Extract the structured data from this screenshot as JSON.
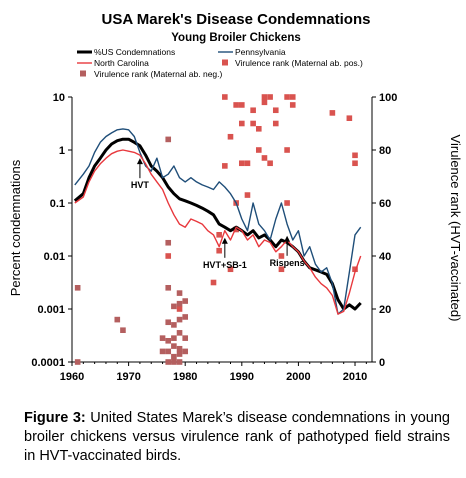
{
  "chart_data": {
    "type": "line",
    "title": "USA Marek's Disease Condemnations",
    "subtitle": "Young Broiler Chickens",
    "ylabel": "Percent condemnations",
    "y2label": "Virulence rank (HVT-vaccinated)",
    "xlim": [
      1960,
      2013
    ],
    "ylim": [
      0.0001,
      10
    ],
    "yscale": "log",
    "y2lim": [
      0,
      100
    ],
    "x_ticks": [
      "1960",
      "1970",
      "1980",
      "1990",
      "2000",
      "2010"
    ],
    "x_tick_values": [
      1960,
      1970,
      1980,
      1990,
      2000,
      2010
    ],
    "y_ticks": [
      "10",
      "1",
      "0.1",
      "0.01",
      "0.001",
      "0.0001"
    ],
    "y_tick_values": [
      10,
      1,
      0.1,
      0.01,
      0.001,
      0.0001
    ],
    "y2_ticks": [
      "100",
      "80",
      "60",
      "40",
      "20",
      "0"
    ],
    "y2_tick_values": [
      100,
      80,
      60,
      40,
      20,
      0
    ],
    "legend_position": "top",
    "series": [
      {
        "name": "%US Condemnations",
        "color": "#000000",
        "style": "thick",
        "x": [
          1960.5,
          1962,
          1963,
          1964,
          1965,
          1966,
          1967,
          1968,
          1969,
          1970,
          1971,
          1972,
          1973,
          1974,
          1975,
          1976,
          1977,
          1978,
          1979,
          1980,
          1981,
          1982,
          1983,
          1984,
          1985,
          1986,
          1987,
          1988,
          1989,
          1990,
          1991,
          1992,
          1993,
          1994,
          1995,
          1996,
          1997,
          1998,
          1999,
          2000,
          2001,
          2002,
          2003,
          2004,
          2005,
          2006,
          2007,
          2008,
          2009,
          2010,
          2011
        ],
        "y": [
          0.11,
          0.15,
          0.3,
          0.5,
          0.7,
          1.0,
          1.3,
          1.5,
          1.6,
          1.6,
          1.4,
          1.2,
          0.8,
          0.5,
          0.4,
          0.3,
          0.2,
          0.15,
          0.12,
          0.11,
          0.1,
          0.09,
          0.08,
          0.07,
          0.06,
          0.04,
          0.035,
          0.03,
          0.035,
          0.03,
          0.025,
          0.03,
          0.022,
          0.025,
          0.02,
          0.015,
          0.02,
          0.018,
          0.015,
          0.012,
          0.008,
          0.006,
          0.0055,
          0.005,
          0.0045,
          0.003,
          0.0015,
          0.001,
          0.0012,
          0.001,
          0.0013
        ]
      },
      {
        "name": "Pennsylvania",
        "color": "#1f4e79",
        "style": "thin",
        "x": [
          1960.5,
          1962,
          1963,
          1964,
          1965,
          1966,
          1967,
          1968,
          1969,
          1970,
          1971,
          1972,
          1973,
          1974,
          1975,
          1976,
          1977,
          1978,
          1979,
          1980,
          1981,
          1982,
          1983,
          1984,
          1985,
          1986,
          1987,
          1988,
          1989,
          1990,
          1991,
          1992,
          1993,
          1994,
          1995,
          1996,
          1997,
          1998,
          1999,
          2000,
          2001,
          2002,
          2003,
          2004,
          2005,
          2006,
          2007,
          2008,
          2009,
          2010,
          2011
        ],
        "y": [
          0.22,
          0.35,
          0.5,
          0.9,
          1.4,
          1.8,
          2.1,
          2.4,
          2.5,
          2.4,
          1.8,
          0.9,
          0.5,
          0.4,
          0.7,
          0.3,
          0.35,
          0.5,
          0.3,
          0.25,
          0.3,
          0.25,
          0.22,
          0.2,
          0.18,
          0.25,
          0.2,
          0.15,
          0.1,
          0.05,
          0.03,
          0.1,
          0.04,
          0.03,
          0.02,
          0.05,
          0.1,
          0.04,
          0.02,
          0.03,
          0.01,
          0.015,
          0.007,
          0.005,
          0.006,
          0.003,
          0.0008,
          0.001,
          0.005,
          0.025,
          0.035
        ]
      },
      {
        "name": "North Carolina",
        "color": "#e8383d",
        "style": "thin",
        "x": [
          1960.5,
          1962,
          1963,
          1964,
          1965,
          1966,
          1967,
          1968,
          1969,
          1970,
          1971,
          1972,
          1973,
          1974,
          1975,
          1976,
          1977,
          1978,
          1979,
          1980,
          1981,
          1982,
          1983,
          1984,
          1985,
          1986,
          1987,
          1988,
          1989,
          1990,
          1991,
          1992,
          1993,
          1994,
          1995,
          1996,
          1997,
          1998,
          1999,
          2000,
          2001,
          2002,
          2003,
          2004,
          2005,
          2006,
          2007,
          2008,
          2009,
          2010,
          2011
        ],
        "y": [
          0.1,
          0.13,
          0.25,
          0.4,
          0.55,
          0.7,
          0.85,
          0.95,
          1.0,
          0.95,
          0.9,
          0.8,
          0.55,
          0.35,
          0.25,
          0.18,
          0.1,
          0.06,
          0.04,
          0.035,
          0.05,
          0.045,
          0.04,
          0.03,
          0.025,
          0.015,
          0.03,
          0.02,
          0.035,
          0.03,
          0.02,
          0.025,
          0.015,
          0.02,
          0.018,
          0.012,
          0.015,
          0.02,
          0.015,
          0.012,
          0.008,
          0.006,
          0.004,
          0.003,
          0.0025,
          0.0018,
          0.0008,
          0.0009,
          0.002,
          0.005,
          0.01
        ]
      },
      {
        "name": "Virulence rank (Maternal ab. pos.)",
        "color": "#d9534f",
        "marker": "square",
        "axis": "right",
        "x": [
          1977,
          1979,
          1985,
          1986,
          1986,
          1987,
          1987,
          1988,
          1988,
          1989,
          1989,
          1989,
          1990,
          1990,
          1990,
          1991,
          1991,
          1992,
          1992,
          1993,
          1993,
          1994,
          1994,
          1994,
          1995,
          1995,
          1996,
          1996,
          1997,
          1997,
          1998,
          1998,
          1998,
          1999,
          1999,
          2006,
          2009,
          2010,
          2010,
          2010
        ],
        "y": [
          40,
          20,
          30,
          48,
          42,
          100,
          74,
          35,
          85,
          60,
          50,
          97,
          97,
          90,
          75,
          75,
          63,
          95,
          90,
          88,
          80,
          100,
          98,
          77,
          100,
          75,
          95,
          90,
          40,
          35,
          100,
          80,
          60,
          100,
          97,
          94,
          92,
          78,
          75,
          35
        ]
      },
      {
        "name": "Virulence rank (Maternal ab. neg.)",
        "color": "#b45f5f",
        "marker": "square",
        "axis": "right",
        "x": [
          1961,
          1961,
          1968,
          1969,
          1976,
          1976,
          1977,
          1977,
          1977,
          1977,
          1977,
          1977,
          1977,
          1978,
          1978,
          1978,
          1978,
          1978,
          1978,
          1979,
          1979,
          1979,
          1979,
          1979,
          1979,
          1980,
          1980,
          1980,
          1979,
          1980
        ],
        "y": [
          28,
          0,
          16,
          12,
          9,
          4,
          45,
          28,
          15,
          8,
          4,
          0,
          84,
          21,
          14,
          9,
          6,
          2,
          0,
          22,
          16,
          11,
          5,
          3,
          0,
          17,
          9,
          4,
          26,
          23
        ]
      }
    ],
    "annotations": [
      {
        "text": "HVT",
        "x": 1972,
        "y": 0.35
      },
      {
        "text": "HVT+SB-1",
        "x": 1987,
        "y": 0.011
      },
      {
        "text": "Rispens",
        "x": 1998,
        "y": 0.012
      }
    ]
  },
  "caption": {
    "label": "Figure 3:",
    "text": " United States Marek’s disease condemnations in young broiler chickens versus virulence rank of pathotyped field strains in HVT-vaccinated birds."
  }
}
